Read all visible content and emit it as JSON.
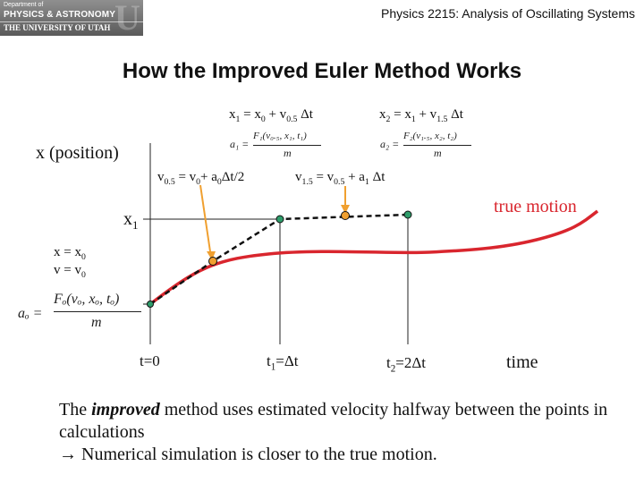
{
  "header": {
    "logo_line1": "Department of",
    "logo_line2": "PHYSICS & ASTRONOMY",
    "logo_line3": "THE UNIVERSITY OF UTAH",
    "course_title": "Physics 2215: Analysis of Oscillating Systems"
  },
  "slide": {
    "title": "How the Improved Euler Method Works",
    "axis_label_y": "x (position)",
    "axis_label_x": "time",
    "true_motion": "true motion",
    "eq_x1": {
      "x": "x",
      "s1": "1",
      "eq": " = x",
      "s0": "0",
      "plus": " + v",
      "sh": "0.5",
      "dt": " Δt"
    },
    "eq_x2": {
      "x": "x",
      "s2": "2",
      "eq": " = x",
      "s1": "1",
      "plus": " + v",
      "sh": "1.5",
      "dt": " Δt"
    },
    "eq_v05": {
      "v": "v",
      "s": "0.5",
      "eq": " = v",
      "s0": "0",
      "plus": "+ a",
      "sa": "0",
      "dt": "Δt/2"
    },
    "eq_v15": {
      "v": "v",
      "s": "1.5",
      "eq": " = v",
      "s05": "0.5",
      "plus": " + a",
      "sa": "1",
      "dt": " Δt"
    },
    "x1_label": {
      "x": "x",
      "s": "1"
    },
    "init_x": {
      "x": "x = x",
      "s": "0"
    },
    "init_v": {
      "v": "v = v",
      "s": "0"
    },
    "a1_formula": {
      "lhs": "a₁ =",
      "num": "F₁(v₀.₅, x₁, t₁)",
      "den": "m"
    },
    "a2_formula": {
      "lhs": "a₂ =",
      "num": "F₂(v₁.₅, x₂, t₂)",
      "den": "m"
    },
    "a0_formula": {
      "lhs": "aₒ =",
      "num": "Fₒ(vₒ, xₒ, tₒ)",
      "den": "m"
    },
    "t0": "t=0",
    "t1": {
      "t": "t",
      "s": "1",
      "rest": "=Δt"
    },
    "t2": {
      "t": "t",
      "s": "2",
      "rest": "=2Δt"
    },
    "body": {
      "line1_pre": "The ",
      "line1_em": "improved",
      "line1_post": " method uses estimated velocity halfway between the points in calculations",
      "line2": "→ Numerical simulation is closer to the true motion."
    }
  },
  "colors": {
    "curve": "#d9262e",
    "midpoint": "#f0a030",
    "point": "#2e9c6a",
    "pointer": "#f0a030",
    "grid": "#222222"
  }
}
